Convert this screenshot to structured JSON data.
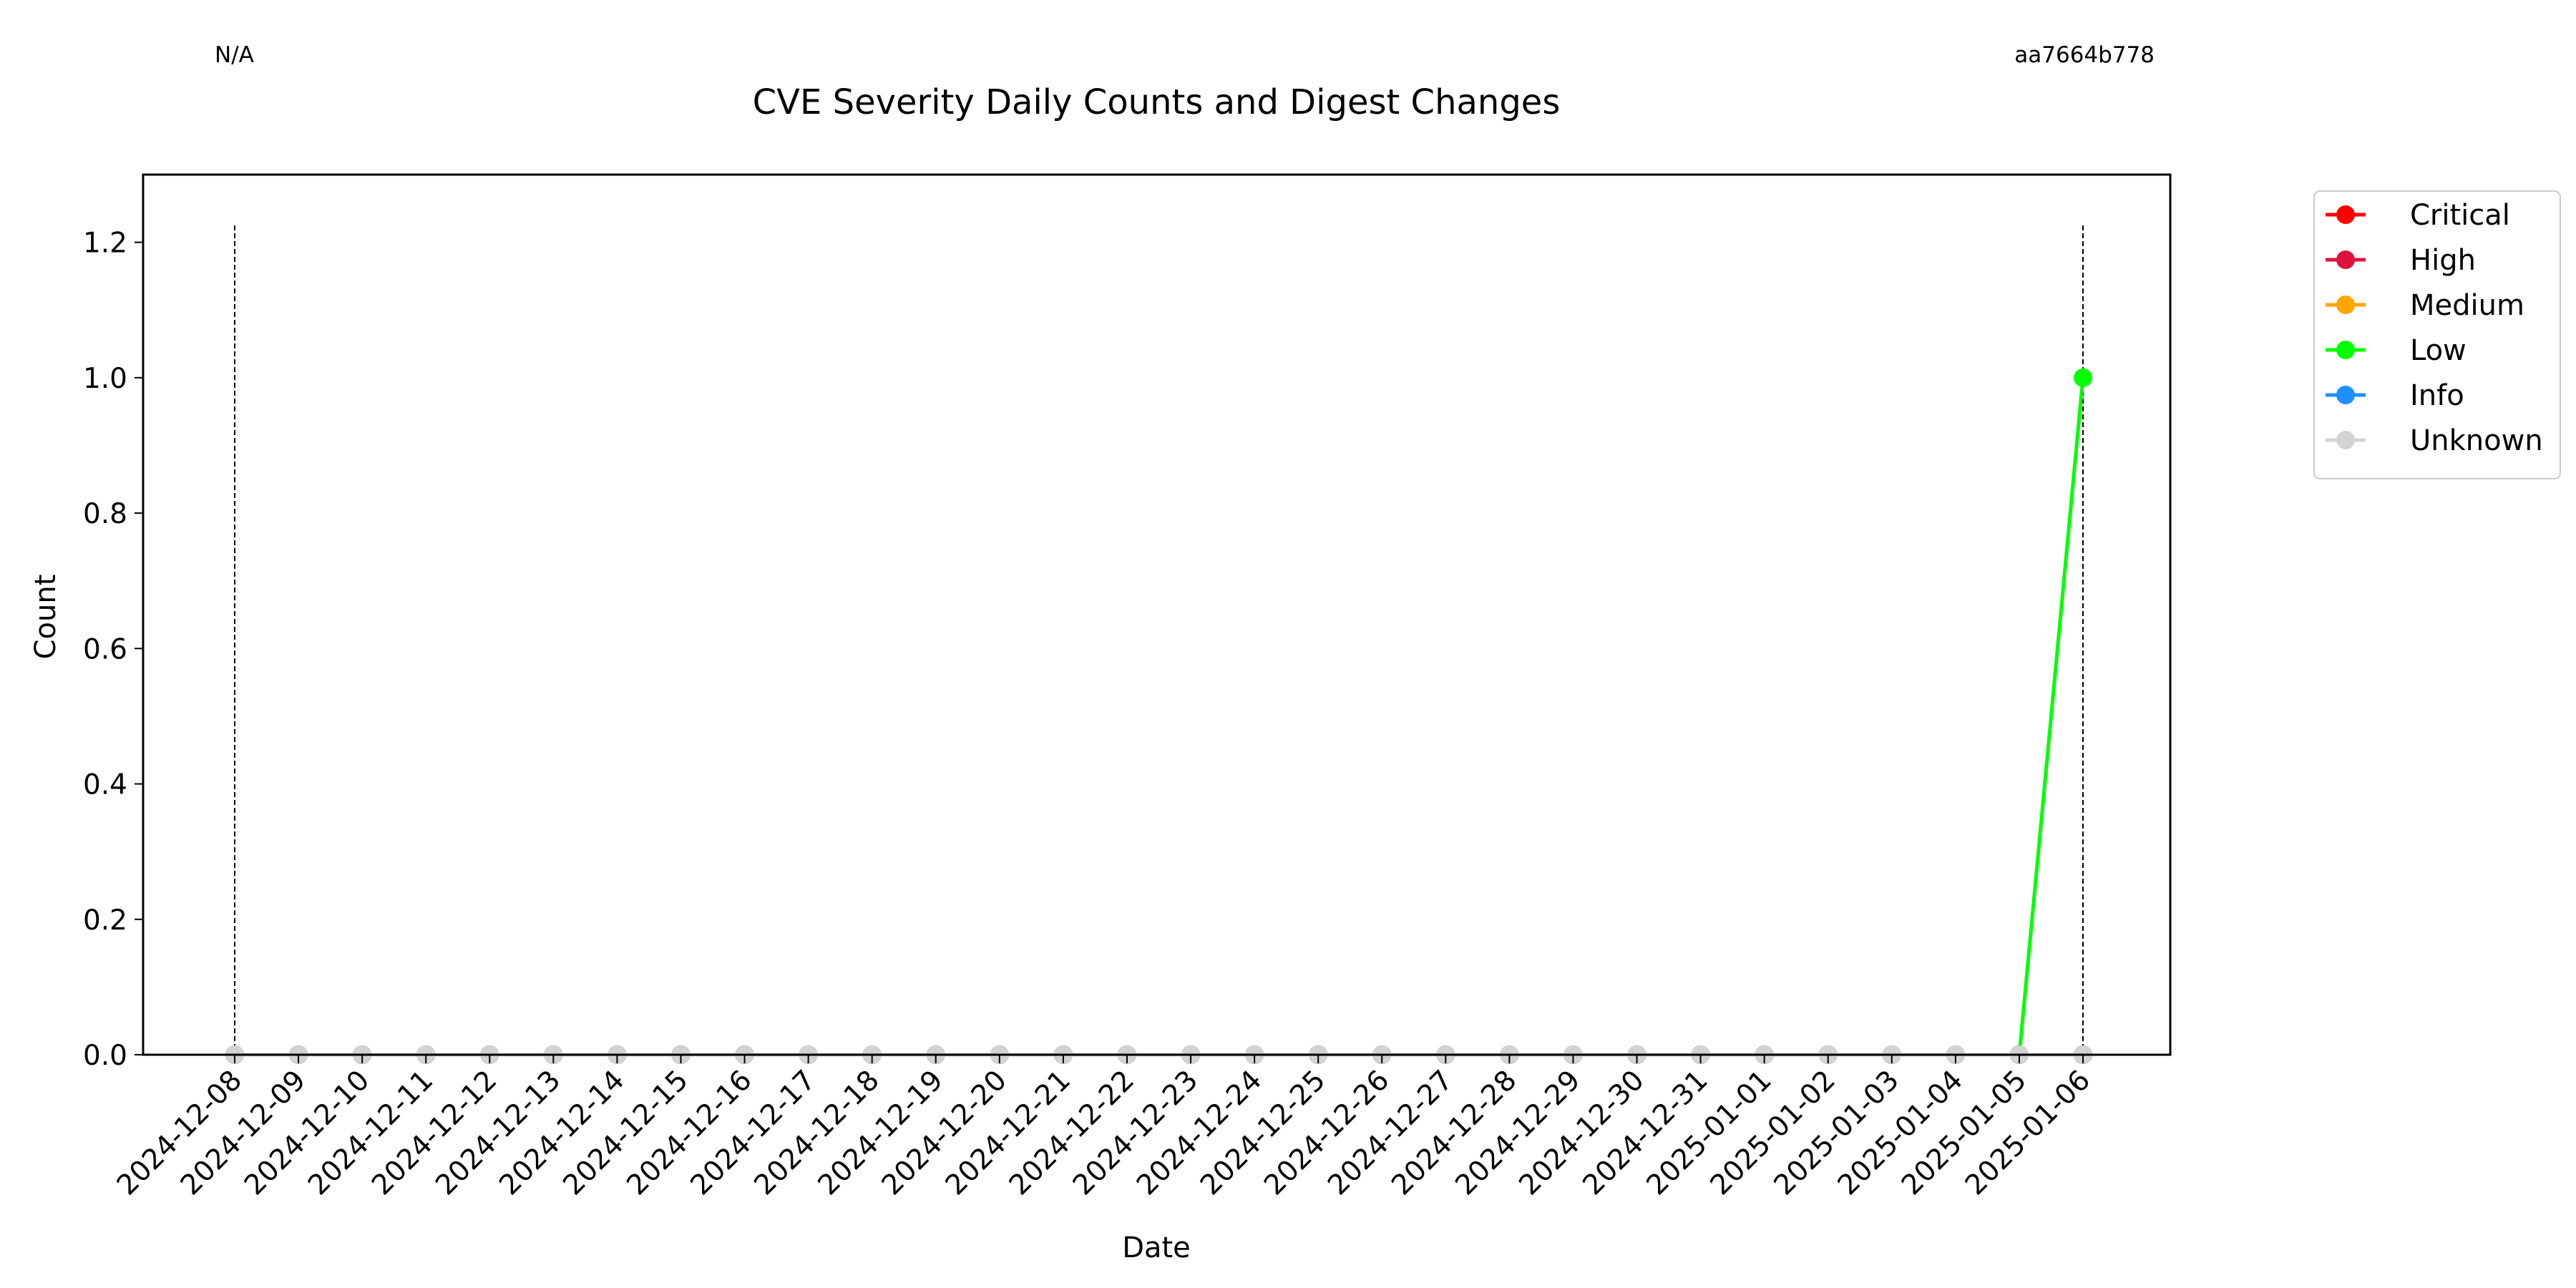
{
  "corner_left": "N/A",
  "corner_right": "aa7664b778",
  "chart_data": {
    "type": "line",
    "title": "CVE Severity Daily Counts and Digest Changes",
    "xlabel": "Date",
    "ylabel": "Count",
    "ylim": [
      0,
      1.3
    ],
    "yticks": [
      0.0,
      0.2,
      0.4,
      0.6,
      0.8,
      1.0,
      1.2
    ],
    "ytick_labels": [
      "0.0",
      "0.2",
      "0.4",
      "0.6",
      "0.8",
      "1.0",
      "1.2"
    ],
    "grid": false,
    "legend_placement": "outside-top-right",
    "x": [
      "2024-12-08",
      "2024-12-09",
      "2024-12-10",
      "2024-12-11",
      "2024-12-12",
      "2024-12-13",
      "2024-12-14",
      "2024-12-15",
      "2024-12-16",
      "2024-12-17",
      "2024-12-18",
      "2024-12-19",
      "2024-12-20",
      "2024-12-21",
      "2024-12-22",
      "2024-12-23",
      "2024-12-24",
      "2024-12-25",
      "2024-12-26",
      "2024-12-27",
      "2024-12-28",
      "2024-12-29",
      "2024-12-30",
      "2024-12-31",
      "2025-01-01",
      "2025-01-02",
      "2025-01-03",
      "2025-01-04",
      "2025-01-05",
      "2025-01-06"
    ],
    "digest_change_dates": [
      "2024-12-08",
      "2025-01-06"
    ],
    "series": [
      {
        "name": "Critical",
        "color": "#ff0000",
        "values": [
          0,
          0,
          0,
          0,
          0,
          0,
          0,
          0,
          0,
          0,
          0,
          0,
          0,
          0,
          0,
          0,
          0,
          0,
          0,
          0,
          0,
          0,
          0,
          0,
          0,
          0,
          0,
          0,
          0,
          0
        ]
      },
      {
        "name": "High",
        "color": "#dc143c",
        "values": [
          0,
          0,
          0,
          0,
          0,
          0,
          0,
          0,
          0,
          0,
          0,
          0,
          0,
          0,
          0,
          0,
          0,
          0,
          0,
          0,
          0,
          0,
          0,
          0,
          0,
          0,
          0,
          0,
          0,
          0
        ]
      },
      {
        "name": "Medium",
        "color": "#ffa500",
        "values": [
          0,
          0,
          0,
          0,
          0,
          0,
          0,
          0,
          0,
          0,
          0,
          0,
          0,
          0,
          0,
          0,
          0,
          0,
          0,
          0,
          0,
          0,
          0,
          0,
          0,
          0,
          0,
          0,
          0,
          0
        ]
      },
      {
        "name": "Low",
        "color": "#00ff00",
        "values": [
          0,
          0,
          0,
          0,
          0,
          0,
          0,
          0,
          0,
          0,
          0,
          0,
          0,
          0,
          0,
          0,
          0,
          0,
          0,
          0,
          0,
          0,
          0,
          0,
          0,
          0,
          0,
          0,
          0,
          1
        ]
      },
      {
        "name": "Info",
        "color": "#1e90ff",
        "values": [
          0,
          0,
          0,
          0,
          0,
          0,
          0,
          0,
          0,
          0,
          0,
          0,
          0,
          0,
          0,
          0,
          0,
          0,
          0,
          0,
          0,
          0,
          0,
          0,
          0,
          0,
          0,
          0,
          0,
          0
        ]
      },
      {
        "name": "Unknown",
        "color": "#d3d3d3",
        "values": [
          0,
          0,
          0,
          0,
          0,
          0,
          0,
          0,
          0,
          0,
          0,
          0,
          0,
          0,
          0,
          0,
          0,
          0,
          0,
          0,
          0,
          0,
          0,
          0,
          0,
          0,
          0,
          0,
          0,
          0
        ]
      }
    ]
  }
}
